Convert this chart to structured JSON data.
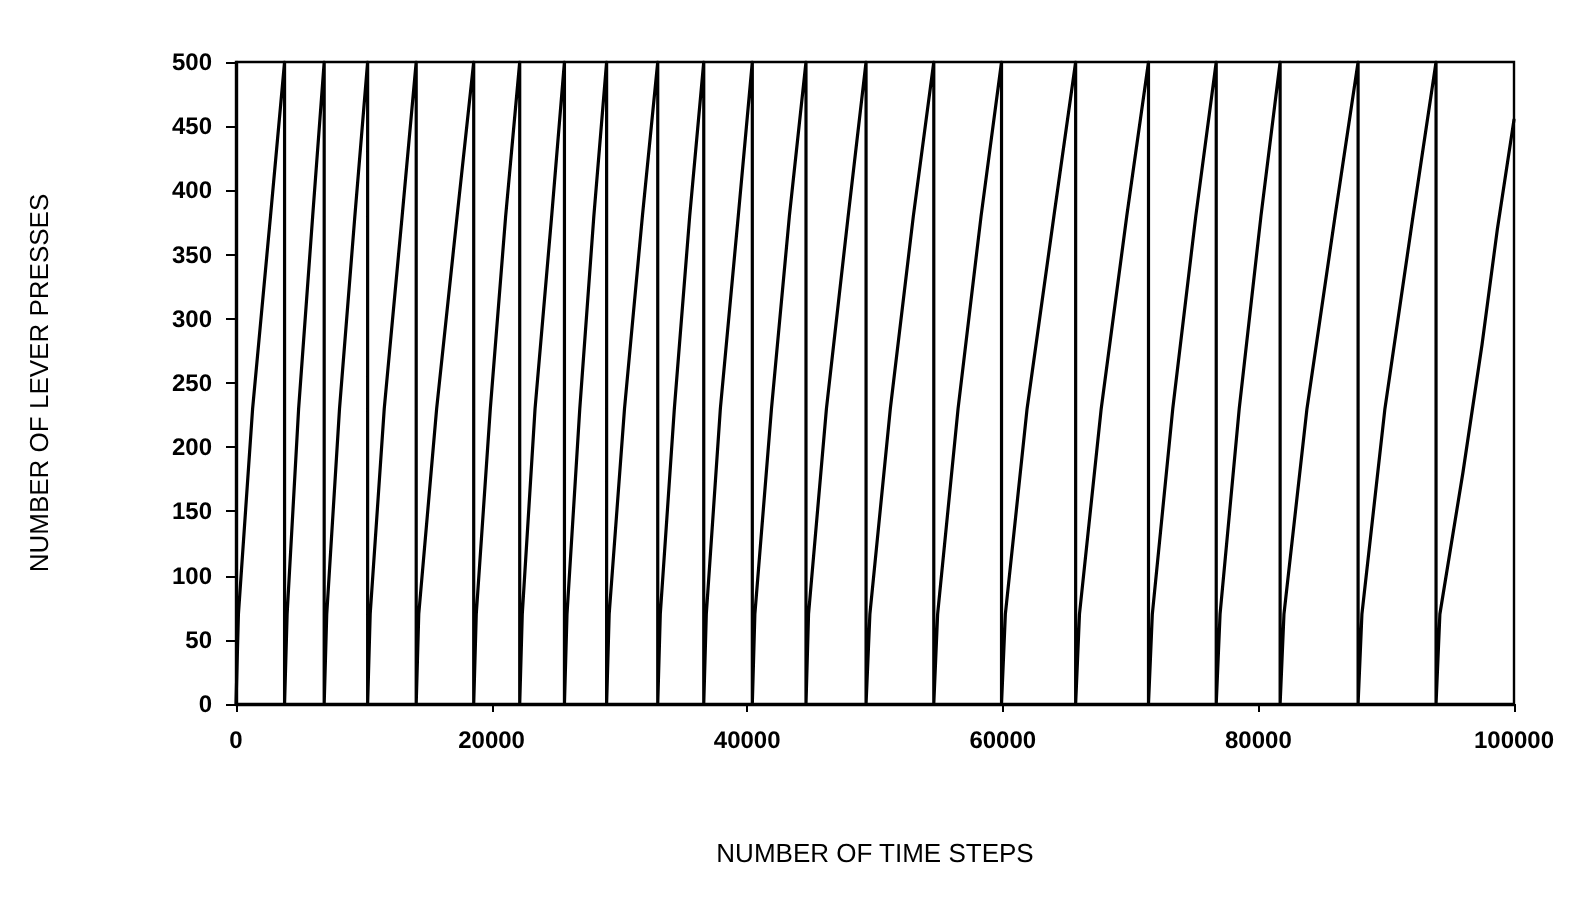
{
  "chart_data": {
    "type": "line",
    "xlabel": "NUMBER OF TIME STEPS",
    "ylabel": "NUMBER OF LEVER PRESSES",
    "xlim": [
      0,
      100000
    ],
    "xticks": [
      0,
      20000,
      40000,
      60000,
      80000,
      100000
    ],
    "ylim": [
      0,
      500
    ],
    "yticks": [
      0,
      50,
      100,
      150,
      200,
      250,
      300,
      350,
      400,
      450,
      500
    ],
    "grid": false,
    "marker": "none",
    "line_style": "solid",
    "series": [
      {
        "color": "#000000",
        "x": [
          0,
          190,
          1300,
          2700,
          3800,
          3800,
          4000,
          4900,
          6000,
          6900,
          6900,
          7100,
          8100,
          9300,
          10300,
          10300,
          10500,
          11600,
          13000,
          14100,
          14100,
          14300,
          15700,
          17300,
          18600,
          18600,
          18800,
          19900,
          21100,
          22200,
          22200,
          22400,
          23400,
          24700,
          25700,
          25700,
          25900,
          26900,
          28000,
          29000,
          29000,
          29200,
          30400,
          31800,
          33000,
          33000,
          33200,
          34300,
          35500,
          36600,
          36600,
          36800,
          37900,
          39300,
          40400,
          40400,
          40600,
          41900,
          43300,
          44600,
          44600,
          44800,
          46200,
          47900,
          49300,
          49300,
          49600,
          51200,
          53000,
          54600,
          54600,
          54900,
          56500,
          58300,
          59900,
          59900,
          60200,
          61900,
          64000,
          65700,
          65700,
          66000,
          67700,
          69700,
          71400,
          71400,
          71700,
          73300,
          75100,
          76700,
          76700,
          77000,
          78500,
          80200,
          81700,
          81700,
          82000,
          83800,
          86000,
          87800,
          87800,
          88100,
          89900,
          92100,
          93900,
          93900,
          94200,
          96000,
          97500,
          98700,
          100000
        ],
        "values": [
          0,
          70,
          230,
          380,
          500,
          0,
          70,
          230,
          380,
          500,
          0,
          70,
          230,
          380,
          500,
          0,
          70,
          230,
          380,
          500,
          0,
          70,
          230,
          380,
          500,
          0,
          70,
          230,
          380,
          500,
          0,
          70,
          230,
          380,
          500,
          0,
          70,
          230,
          380,
          500,
          0,
          70,
          230,
          380,
          500,
          0,
          70,
          230,
          380,
          500,
          0,
          70,
          230,
          380,
          500,
          0,
          70,
          230,
          380,
          500,
          0,
          70,
          230,
          380,
          500,
          0,
          70,
          230,
          380,
          500,
          0,
          70,
          230,
          380,
          500,
          0,
          70,
          230,
          380,
          500,
          0,
          70,
          230,
          380,
          500,
          0,
          70,
          230,
          380,
          500,
          0,
          70,
          230,
          380,
          500,
          0,
          70,
          230,
          380,
          500,
          0,
          70,
          230,
          380,
          500,
          0,
          70,
          180,
          280,
          370,
          455
        ]
      }
    ]
  }
}
